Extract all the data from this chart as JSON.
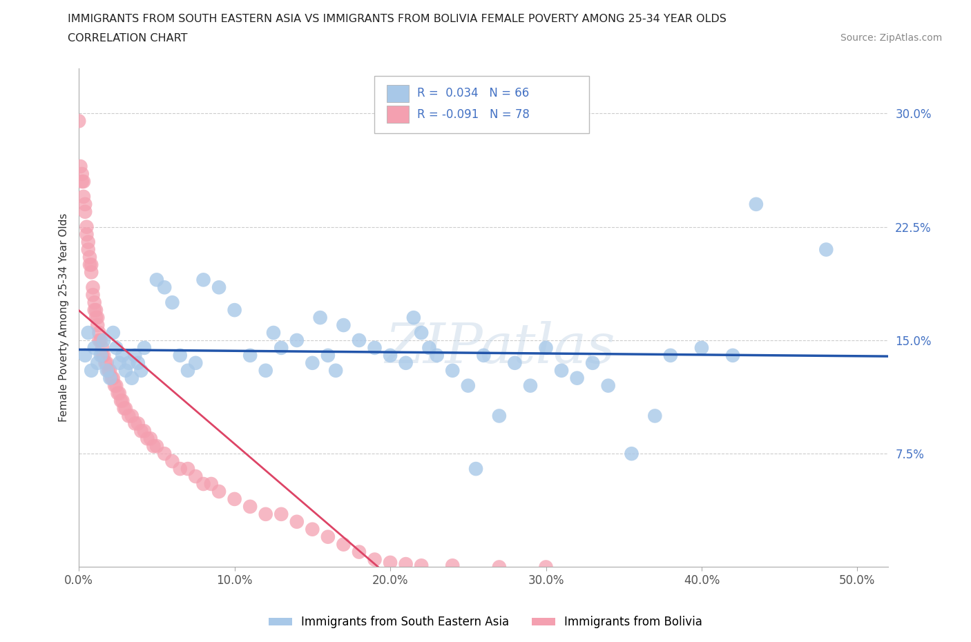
{
  "title_line1": "IMMIGRANTS FROM SOUTH EASTERN ASIA VS IMMIGRANTS FROM BOLIVIA FEMALE POVERTY AMONG 25-34 YEAR OLDS",
  "title_line2": "CORRELATION CHART",
  "source": "Source: ZipAtlas.com",
  "ylabel": "Female Poverty Among 25-34 Year Olds",
  "xlim": [
    0.0,
    0.52
  ],
  "ylim": [
    0.0,
    0.33
  ],
  "xtick_vals": [
    0.0,
    0.1,
    0.2,
    0.3,
    0.4,
    0.5
  ],
  "xticklabels": [
    "0.0%",
    "10.0%",
    "20.0%",
    "30.0%",
    "40.0%",
    "50.0%"
  ],
  "ytick_vals": [
    0.075,
    0.15,
    0.225,
    0.3
  ],
  "yticklabels": [
    "7.5%",
    "15.0%",
    "22.5%",
    "30.0%"
  ],
  "legend1_label": "Immigrants from South Eastern Asia",
  "legend2_label": "Immigrants from Bolivia",
  "R1": 0.034,
  "N1": 66,
  "R2": -0.091,
  "N2": 78,
  "color_asia": "#a8c8e8",
  "color_bolivia": "#f4a0b0",
  "color_asia_line": "#2255aa",
  "color_bolivia_line": "#dd4466",
  "background_color": "#ffffff",
  "asia_x": [
    0.004,
    0.006,
    0.008,
    0.01,
    0.012,
    0.014,
    0.016,
    0.018,
    0.02,
    0.022,
    0.024,
    0.026,
    0.028,
    0.03,
    0.032,
    0.034,
    0.036,
    0.038,
    0.04,
    0.042,
    0.05,
    0.055,
    0.06,
    0.065,
    0.07,
    0.075,
    0.08,
    0.09,
    0.1,
    0.11,
    0.12,
    0.125,
    0.13,
    0.14,
    0.15,
    0.155,
    0.16,
    0.165,
    0.17,
    0.18,
    0.19,
    0.2,
    0.21,
    0.215,
    0.22,
    0.225,
    0.23,
    0.24,
    0.25,
    0.255,
    0.26,
    0.27,
    0.28,
    0.29,
    0.3,
    0.31,
    0.32,
    0.33,
    0.34,
    0.355,
    0.37,
    0.38,
    0.4,
    0.42,
    0.435,
    0.48
  ],
  "asia_y": [
    0.14,
    0.155,
    0.13,
    0.145,
    0.135,
    0.14,
    0.15,
    0.13,
    0.125,
    0.155,
    0.145,
    0.135,
    0.14,
    0.13,
    0.135,
    0.125,
    0.14,
    0.135,
    0.13,
    0.145,
    0.19,
    0.185,
    0.175,
    0.14,
    0.13,
    0.135,
    0.19,
    0.185,
    0.17,
    0.14,
    0.13,
    0.155,
    0.145,
    0.15,
    0.135,
    0.165,
    0.14,
    0.13,
    0.16,
    0.15,
    0.145,
    0.14,
    0.135,
    0.165,
    0.155,
    0.145,
    0.14,
    0.13,
    0.12,
    0.065,
    0.14,
    0.1,
    0.135,
    0.12,
    0.145,
    0.13,
    0.125,
    0.135,
    0.12,
    0.075,
    0.1,
    0.14,
    0.145,
    0.14,
    0.24,
    0.21
  ],
  "bolivia_x": [
    0.0,
    0.001,
    0.002,
    0.002,
    0.003,
    0.003,
    0.004,
    0.004,
    0.005,
    0.005,
    0.006,
    0.006,
    0.007,
    0.007,
    0.008,
    0.008,
    0.009,
    0.009,
    0.01,
    0.01,
    0.011,
    0.011,
    0.012,
    0.012,
    0.013,
    0.013,
    0.014,
    0.015,
    0.015,
    0.016,
    0.017,
    0.018,
    0.019,
    0.02,
    0.021,
    0.022,
    0.023,
    0.024,
    0.025,
    0.026,
    0.027,
    0.028,
    0.029,
    0.03,
    0.032,
    0.034,
    0.036,
    0.038,
    0.04,
    0.042,
    0.044,
    0.046,
    0.048,
    0.05,
    0.055,
    0.06,
    0.065,
    0.07,
    0.075,
    0.08,
    0.085,
    0.09,
    0.1,
    0.11,
    0.12,
    0.13,
    0.14,
    0.15,
    0.16,
    0.17,
    0.18,
    0.19,
    0.2,
    0.21,
    0.22,
    0.24,
    0.27,
    0.3
  ],
  "bolivia_y": [
    0.295,
    0.265,
    0.26,
    0.255,
    0.255,
    0.245,
    0.24,
    0.235,
    0.225,
    0.22,
    0.215,
    0.21,
    0.205,
    0.2,
    0.2,
    0.195,
    0.185,
    0.18,
    0.175,
    0.17,
    0.17,
    0.165,
    0.165,
    0.16,
    0.155,
    0.15,
    0.15,
    0.145,
    0.14,
    0.14,
    0.135,
    0.135,
    0.13,
    0.13,
    0.125,
    0.125,
    0.12,
    0.12,
    0.115,
    0.115,
    0.11,
    0.11,
    0.105,
    0.105,
    0.1,
    0.1,
    0.095,
    0.095,
    0.09,
    0.09,
    0.085,
    0.085,
    0.08,
    0.08,
    0.075,
    0.07,
    0.065,
    0.065,
    0.06,
    0.055,
    0.055,
    0.05,
    0.045,
    0.04,
    0.035,
    0.035,
    0.03,
    0.025,
    0.02,
    0.015,
    0.01,
    0.005,
    0.003,
    0.002,
    0.001,
    0.001,
    0.0,
    0.0
  ]
}
